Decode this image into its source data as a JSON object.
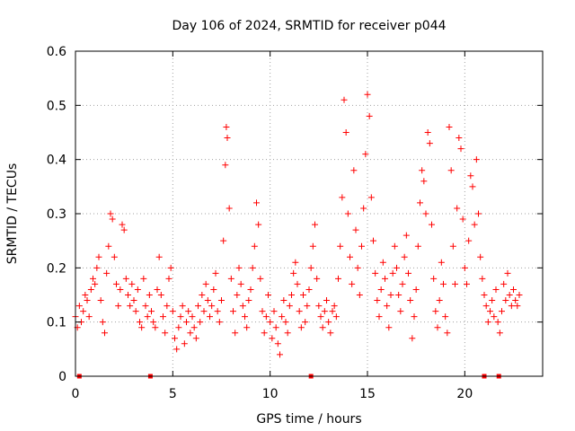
{
  "chart_data": {
    "type": "scatter",
    "title": "Day 106 of 2024, SRMTID for receiver p044",
    "xlabel": "GPS time / hours",
    "ylabel": "SRMTID / TECUs",
    "xlim": [
      0,
      24
    ],
    "ylim": [
      0,
      0.6
    ],
    "x_ticks": [
      0,
      5,
      10,
      15,
      20
    ],
    "x_tick_labels": [
      "0",
      "5",
      "10",
      "15",
      "20"
    ],
    "y_ticks": [
      0,
      0.1,
      0.2,
      0.3,
      0.4,
      0.5,
      0.6
    ],
    "y_tick_labels": [
      "0",
      "0.1",
      "0.2",
      "0.3",
      "0.4",
      "0.5",
      "0.6"
    ],
    "grid": true,
    "marker": "+",
    "color": "#ff0000",
    "series": [
      {
        "name": "SRMTID",
        "points": [
          [
            0.0,
            0.11
          ],
          [
            0.1,
            0.09
          ],
          [
            0.2,
            0.13
          ],
          [
            0.3,
            0.1
          ],
          [
            0.4,
            0.12
          ],
          [
            0.5,
            0.15
          ],
          [
            0.6,
            0.14
          ],
          [
            0.7,
            0.11
          ],
          [
            0.8,
            0.16
          ],
          [
            0.9,
            0.18
          ],
          [
            1.0,
            0.17
          ],
          [
            1.1,
            0.2
          ],
          [
            1.2,
            0.22
          ],
          [
            1.3,
            0.14
          ],
          [
            1.4,
            0.1
          ],
          [
            1.5,
            0.08
          ],
          [
            1.6,
            0.19
          ],
          [
            1.7,
            0.24
          ],
          [
            1.8,
            0.3
          ],
          [
            1.9,
            0.29
          ],
          [
            2.0,
            0.22
          ],
          [
            2.1,
            0.17
          ],
          [
            2.2,
            0.13
          ],
          [
            2.3,
            0.16
          ],
          [
            2.4,
            0.28
          ],
          [
            2.5,
            0.27
          ],
          [
            2.6,
            0.18
          ],
          [
            2.7,
            0.15
          ],
          [
            2.8,
            0.13
          ],
          [
            2.9,
            0.17
          ],
          [
            3.0,
            0.14
          ],
          [
            3.1,
            0.12
          ],
          [
            3.2,
            0.16
          ],
          [
            3.3,
            0.1
          ],
          [
            3.4,
            0.09
          ],
          [
            3.5,
            0.18
          ],
          [
            3.6,
            0.13
          ],
          [
            3.7,
            0.11
          ],
          [
            3.8,
            0.15
          ],
          [
            3.9,
            0.12
          ],
          [
            4.0,
            0.1
          ],
          [
            4.1,
            0.09
          ],
          [
            4.2,
            0.16
          ],
          [
            4.3,
            0.22
          ],
          [
            4.4,
            0.15
          ],
          [
            4.5,
            0.11
          ],
          [
            4.6,
            0.08
          ],
          [
            4.7,
            0.13
          ],
          [
            4.8,
            0.18
          ],
          [
            4.9,
            0.2
          ],
          [
            5.0,
            0.12
          ],
          [
            5.1,
            0.07
          ],
          [
            5.2,
            0.05
          ],
          [
            5.3,
            0.09
          ],
          [
            5.4,
            0.11
          ],
          [
            5.5,
            0.13
          ],
          [
            5.6,
            0.06
          ],
          [
            5.7,
            0.1
          ],
          [
            5.8,
            0.12
          ],
          [
            5.9,
            0.08
          ],
          [
            6.0,
            0.11
          ],
          [
            6.1,
            0.09
          ],
          [
            6.2,
            0.07
          ],
          [
            6.3,
            0.13
          ],
          [
            6.4,
            0.1
          ],
          [
            6.5,
            0.15
          ],
          [
            6.6,
            0.12
          ],
          [
            6.7,
            0.17
          ],
          [
            6.8,
            0.14
          ],
          [
            6.9,
            0.11
          ],
          [
            7.0,
            0.13
          ],
          [
            7.1,
            0.16
          ],
          [
            7.2,
            0.19
          ],
          [
            7.3,
            0.12
          ],
          [
            7.4,
            0.1
          ],
          [
            7.5,
            0.14
          ],
          [
            7.6,
            0.25
          ],
          [
            7.7,
            0.39
          ],
          [
            7.75,
            0.46
          ],
          [
            7.8,
            0.44
          ],
          [
            7.9,
            0.31
          ],
          [
            8.0,
            0.18
          ],
          [
            8.1,
            0.12
          ],
          [
            8.2,
            0.08
          ],
          [
            8.3,
            0.15
          ],
          [
            8.4,
            0.2
          ],
          [
            8.5,
            0.17
          ],
          [
            8.6,
            0.13
          ],
          [
            8.7,
            0.11
          ],
          [
            8.8,
            0.09
          ],
          [
            8.9,
            0.14
          ],
          [
            9.0,
            0.16
          ],
          [
            9.1,
            0.2
          ],
          [
            9.2,
            0.24
          ],
          [
            9.3,
            0.32
          ],
          [
            9.4,
            0.28
          ],
          [
            9.5,
            0.18
          ],
          [
            9.6,
            0.12
          ],
          [
            9.7,
            0.08
          ],
          [
            9.8,
            0.11
          ],
          [
            9.9,
            0.15
          ],
          [
            10.0,
            0.1
          ],
          [
            10.1,
            0.07
          ],
          [
            10.2,
            0.12
          ],
          [
            10.3,
            0.09
          ],
          [
            10.4,
            0.06
          ],
          [
            10.5,
            0.04
          ],
          [
            10.6,
            0.11
          ],
          [
            10.7,
            0.14
          ],
          [
            10.8,
            0.1
          ],
          [
            10.9,
            0.08
          ],
          [
            11.0,
            0.13
          ],
          [
            11.1,
            0.15
          ],
          [
            11.2,
            0.19
          ],
          [
            11.3,
            0.21
          ],
          [
            11.4,
            0.17
          ],
          [
            11.5,
            0.12
          ],
          [
            11.6,
            0.09
          ],
          [
            11.7,
            0.15
          ],
          [
            11.8,
            0.1
          ],
          [
            11.9,
            0.13
          ],
          [
            12.0,
            0.16
          ],
          [
            12.1,
            0.2
          ],
          [
            12.2,
            0.24
          ],
          [
            12.3,
            0.28
          ],
          [
            12.4,
            0.18
          ],
          [
            12.5,
            0.13
          ],
          [
            12.6,
            0.11
          ],
          [
            12.7,
            0.09
          ],
          [
            12.8,
            0.12
          ],
          [
            12.9,
            0.14
          ],
          [
            13.0,
            0.1
          ],
          [
            13.1,
            0.08
          ],
          [
            13.2,
            0.12
          ],
          [
            13.3,
            0.13
          ],
          [
            13.4,
            0.11
          ],
          [
            13.5,
            0.18
          ],
          [
            13.6,
            0.24
          ],
          [
            13.7,
            0.33
          ],
          [
            13.8,
            0.51
          ],
          [
            13.9,
            0.45
          ],
          [
            14.0,
            0.3
          ],
          [
            14.1,
            0.22
          ],
          [
            14.2,
            0.17
          ],
          [
            14.3,
            0.38
          ],
          [
            14.4,
            0.27
          ],
          [
            14.5,
            0.2
          ],
          [
            14.6,
            0.15
          ],
          [
            14.7,
            0.24
          ],
          [
            14.8,
            0.31
          ],
          [
            14.9,
            0.41
          ],
          [
            15.0,
            0.52
          ],
          [
            15.1,
            0.48
          ],
          [
            15.2,
            0.33
          ],
          [
            15.3,
            0.25
          ],
          [
            15.4,
            0.19
          ],
          [
            15.5,
            0.14
          ],
          [
            15.6,
            0.11
          ],
          [
            15.7,
            0.16
          ],
          [
            15.8,
            0.21
          ],
          [
            15.9,
            0.18
          ],
          [
            16.0,
            0.13
          ],
          [
            16.1,
            0.09
          ],
          [
            16.2,
            0.15
          ],
          [
            16.3,
            0.19
          ],
          [
            16.4,
            0.24
          ],
          [
            16.5,
            0.2
          ],
          [
            16.6,
            0.15
          ],
          [
            16.7,
            0.12
          ],
          [
            16.8,
            0.17
          ],
          [
            16.9,
            0.22
          ],
          [
            17.0,
            0.26
          ],
          [
            17.1,
            0.19
          ],
          [
            17.2,
            0.14
          ],
          [
            17.3,
            0.07
          ],
          [
            17.4,
            0.11
          ],
          [
            17.5,
            0.16
          ],
          [
            17.6,
            0.24
          ],
          [
            17.7,
            0.32
          ],
          [
            17.8,
            0.38
          ],
          [
            17.9,
            0.36
          ],
          [
            18.0,
            0.3
          ],
          [
            18.1,
            0.45
          ],
          [
            18.2,
            0.43
          ],
          [
            18.3,
            0.28
          ],
          [
            18.4,
            0.18
          ],
          [
            18.5,
            0.12
          ],
          [
            18.6,
            0.09
          ],
          [
            18.7,
            0.14
          ],
          [
            18.8,
            0.21
          ],
          [
            18.9,
            0.17
          ],
          [
            19.0,
            0.11
          ],
          [
            19.1,
            0.08
          ],
          [
            19.2,
            0.46
          ],
          [
            19.3,
            0.38
          ],
          [
            19.4,
            0.24
          ],
          [
            19.5,
            0.17
          ],
          [
            19.6,
            0.31
          ],
          [
            19.7,
            0.44
          ],
          [
            19.8,
            0.42
          ],
          [
            19.9,
            0.29
          ],
          [
            20.0,
            0.2
          ],
          [
            20.1,
            0.17
          ],
          [
            20.2,
            0.25
          ],
          [
            20.3,
            0.37
          ],
          [
            20.4,
            0.35
          ],
          [
            20.5,
            0.28
          ],
          [
            20.6,
            0.4
          ],
          [
            20.7,
            0.3
          ],
          [
            20.8,
            0.22
          ],
          [
            20.9,
            0.18
          ],
          [
            21.0,
            0.15
          ],
          [
            21.1,
            0.13
          ],
          [
            21.2,
            0.1
          ],
          [
            21.3,
            0.12
          ],
          [
            21.4,
            0.14
          ],
          [
            21.5,
            0.11
          ],
          [
            21.6,
            0.16
          ],
          [
            21.7,
            0.1
          ],
          [
            21.8,
            0.08
          ],
          [
            21.9,
            0.12
          ],
          [
            22.0,
            0.17
          ],
          [
            22.1,
            0.14
          ],
          [
            22.2,
            0.19
          ],
          [
            22.3,
            0.15
          ],
          [
            22.4,
            0.13
          ],
          [
            22.5,
            0.16
          ],
          [
            22.6,
            0.14
          ],
          [
            22.7,
            0.13
          ],
          [
            22.8,
            0.15
          ]
        ]
      }
    ],
    "gap_markers_x": [
      0.2,
      3.85,
      12.1,
      21.0,
      21.75
    ]
  }
}
